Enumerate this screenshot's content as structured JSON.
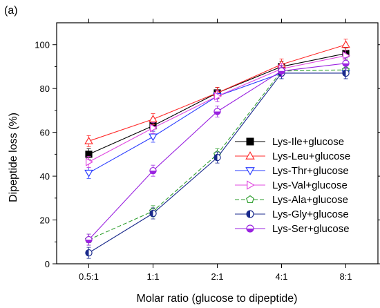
{
  "panel_label": "(a)",
  "chart_data": {
    "type": "line",
    "xlabel": "Molar ratio (glucose to dipeptide)",
    "ylabel": "Dipeptide loss (%)",
    "categories": [
      "0.5:1",
      "1:1",
      "2:1",
      "4:1",
      "8:1"
    ],
    "ylim": [
      0,
      110
    ],
    "yticks": [
      0,
      20,
      40,
      60,
      80,
      100
    ],
    "grid": false,
    "legend_placement": "right",
    "series": [
      {
        "name": "Lys-Ile+glucose",
        "color": "#000000",
        "marker": "square-filled",
        "dash": "solid",
        "values": [
          50,
          63,
          78,
          90,
          96
        ]
      },
      {
        "name": "Lys-Leu+glucose",
        "color": "#ff2a2a",
        "marker": "triangle-up-open",
        "dash": "solid",
        "values": [
          56,
          66,
          78,
          91,
          100
        ]
      },
      {
        "name": "Lys-Thr+glucose",
        "color": "#2a3cff",
        "marker": "triangle-down-open",
        "dash": "solid",
        "values": [
          41.5,
          58,
          76.5,
          87,
          87
        ]
      },
      {
        "name": "Lys-Val+glucose",
        "color": "#e048e0",
        "marker": "triangle-right-open",
        "dash": "solid",
        "values": [
          46.5,
          62,
          76.5,
          89,
          95
        ]
      },
      {
        "name": "Lys-Ala+glucose",
        "color": "#2e9e2e",
        "marker": "pentagon-open",
        "dash": "dashed",
        "values": [
          11,
          24,
          50,
          88,
          88.5
        ]
      },
      {
        "name": "Lys-Gly+glucose",
        "color": "#1a2a8c",
        "marker": "circle-half-left",
        "dash": "solid",
        "values": [
          5,
          23,
          48.5,
          87,
          87
        ]
      },
      {
        "name": "Lys-Ser+glucose",
        "color": "#9a22e0",
        "marker": "circle-half-bottom",
        "dash": "solid",
        "values": [
          11,
          42.5,
          69.5,
          88,
          91.5
        ]
      }
    ]
  }
}
